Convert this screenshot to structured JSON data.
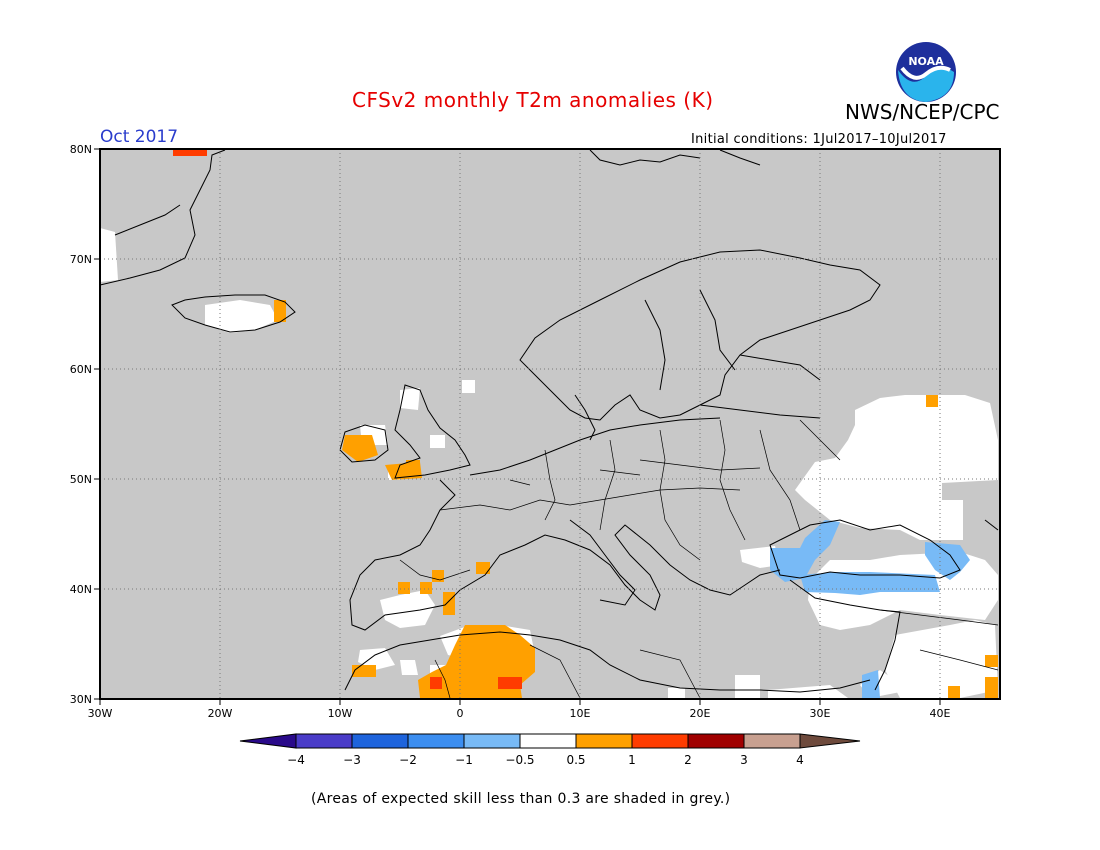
{
  "header": {
    "title": "CFSv2 monthly T2m anomalies (K)",
    "organization": "NWS/NCEP/CPC",
    "logo_text": "NOAA",
    "forecast_month": "Oct 2017",
    "initial_conditions": "Initial conditions: 1Jul2017–10Jul2017"
  },
  "map": {
    "region": "Europe",
    "lon_range": [
      -30,
      45
    ],
    "lat_range": [
      30,
      80
    ],
    "lat_labels": [
      "80N",
      "70N",
      "60N",
      "50N",
      "40N",
      "30N"
    ],
    "lon_labels": [
      "30W",
      "20W",
      "10W",
      "0",
      "10E",
      "20E",
      "30E",
      "40E"
    ],
    "background_color": "#c8c8c8"
  },
  "colorbar": {
    "labels": [
      "−4",
      "−3",
      "−2",
      "−1",
      "−0.5",
      "0.5",
      "1",
      "2",
      "3",
      "4"
    ],
    "colors": [
      "#2a0a8a",
      "#4a3cc8",
      "#1e64dc",
      "#3c8ef0",
      "#78baf6",
      "#ffffff",
      "#ffa000",
      "#ff3c00",
      "#a00000",
      "#c8a090",
      "#6e4a3c"
    ]
  },
  "footnote": "(Areas of expected skill less than 0.3 are shaded in grey.)"
}
